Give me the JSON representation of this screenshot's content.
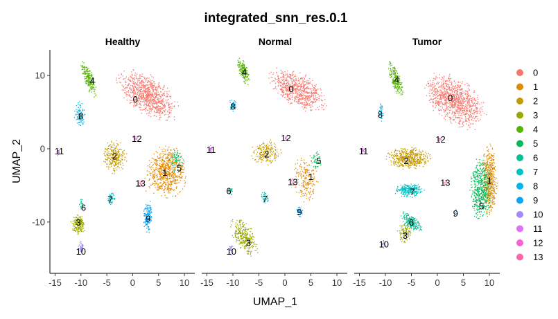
{
  "chart_data": {
    "type": "scatter",
    "title": "integrated_snn_res.0.1",
    "xlabel": "UMAP_1",
    "ylabel": "UMAP_2",
    "xlim": [
      -16,
      12
    ],
    "ylim": [
      -17,
      13.5
    ],
    "xticks": [
      -15,
      -10,
      -5,
      0,
      5,
      10
    ],
    "yticks": [
      -10,
      0,
      10
    ],
    "legend_title": "",
    "legend_position": "right",
    "grid": false,
    "clusters": [
      "0",
      "1",
      "2",
      "3",
      "4",
      "5",
      "6",
      "7",
      "8",
      "9",
      "10",
      "11",
      "12",
      "13"
    ],
    "colors": [
      "#F8766D",
      "#E38900",
      "#C49A00",
      "#99A800",
      "#53B400",
      "#00BC56",
      "#00C094",
      "#00BFC4",
      "#00B6EB",
      "#06A4FF",
      "#A58AFF",
      "#DF70F8",
      "#FB61D7",
      "#FF66A8"
    ],
    "facets": [
      {
        "name": "Healthy",
        "labels": [
          {
            "cluster": "0",
            "x": 0.5,
            "y": 6.8
          },
          {
            "cluster": "1",
            "x": 6.2,
            "y": -3.2
          },
          {
            "cluster": "2",
            "x": -3.5,
            "y": -1.0
          },
          {
            "cluster": "3",
            "x": -10.5,
            "y": -10.0
          },
          {
            "cluster": "4",
            "x": -7.8,
            "y": 9.3
          },
          {
            "cluster": "5",
            "x": 9.0,
            "y": -2.6
          },
          {
            "cluster": "6",
            "x": -9.5,
            "y": -8.0
          },
          {
            "cluster": "7",
            "x": -4.3,
            "y": -6.9
          },
          {
            "cluster": "8",
            "x": -10.0,
            "y": 4.5
          },
          {
            "cluster": "9",
            "x": 3.0,
            "y": -9.5
          },
          {
            "cluster": "10",
            "x": -10.0,
            "y": -14.0
          },
          {
            "cluster": "11",
            "x": -14.2,
            "y": -0.3
          },
          {
            "cluster": "12",
            "x": 0.8,
            "y": 1.4
          },
          {
            "cluster": "13",
            "x": 1.5,
            "y": -4.7
          }
        ],
        "clusters": [
          {
            "cluster": "0",
            "shape": "ellipse",
            "cx": 3.0,
            "cy": 7.3,
            "rx": 6.0,
            "ry": 2.6,
            "rot": -22,
            "n": 900
          },
          {
            "cluster": "1",
            "shape": "ellipse",
            "cx": 6.6,
            "cy": -3.2,
            "rx": 3.8,
            "ry": 3.4,
            "rot": 0,
            "n": 700
          },
          {
            "cluster": "2",
            "shape": "ellipse",
            "cx": -3.6,
            "cy": -1.1,
            "rx": 2.3,
            "ry": 2.3,
            "rot": 0,
            "n": 260
          },
          {
            "cluster": "3",
            "shape": "ellipse",
            "cx": -10.5,
            "cy": -10.4,
            "rx": 1.4,
            "ry": 1.4,
            "rot": 0,
            "n": 180
          },
          {
            "cluster": "4",
            "shape": "ellipse",
            "cx": -8.5,
            "cy": 9.6,
            "rx": 2.6,
            "ry": 0.9,
            "rot": -62,
            "n": 200
          },
          {
            "cluster": "5",
            "shape": "ellipse",
            "cx": 8.6,
            "cy": -1.6,
            "rx": 1.4,
            "ry": 1.6,
            "rot": 0,
            "n": 60
          },
          {
            "cluster": "6",
            "shape": "ellipse",
            "cx": -9.8,
            "cy": -7.6,
            "rx": 0.5,
            "ry": 0.7,
            "rot": 0,
            "n": 20
          },
          {
            "cluster": "7",
            "shape": "ellipse",
            "cx": -4.2,
            "cy": -6.8,
            "rx": 0.8,
            "ry": 0.8,
            "rot": 0,
            "n": 50
          },
          {
            "cluster": "8",
            "shape": "ellipse",
            "cx": -10.3,
            "cy": 4.7,
            "rx": 1.0,
            "ry": 1.8,
            "rot": 0,
            "n": 100
          },
          {
            "cluster": "9",
            "shape": "ellipse",
            "cx": 3.0,
            "cy": -9.2,
            "rx": 0.9,
            "ry": 2.2,
            "rot": 0,
            "n": 150
          },
          {
            "cluster": "10",
            "shape": "ellipse",
            "cx": -10.0,
            "cy": -13.5,
            "rx": 0.5,
            "ry": 0.9,
            "rot": 0,
            "n": 50
          },
          {
            "cluster": "11",
            "shape": "ellipse",
            "cx": -14.3,
            "cy": -0.4,
            "rx": 0.3,
            "ry": 0.6,
            "rot": 0,
            "n": 20
          },
          {
            "cluster": "12",
            "shape": "ellipse",
            "cx": 0.5,
            "cy": 1.5,
            "rx": 0.4,
            "ry": 0.3,
            "rot": 0,
            "n": 12
          },
          {
            "cluster": "13",
            "shape": "ellipse",
            "cx": 1.5,
            "cy": -4.7,
            "rx": 0.4,
            "ry": 0.5,
            "rot": 0,
            "n": 15
          }
        ]
      },
      {
        "name": "Normal",
        "labels": [
          {
            "cluster": "0",
            "x": 1.2,
            "y": 8.2
          },
          {
            "cluster": "1",
            "x": 5.0,
            "y": -3.8
          },
          {
            "cluster": "2",
            "x": -3.5,
            "y": -0.7
          },
          {
            "cluster": "3",
            "x": -7.0,
            "y": -12.8
          },
          {
            "cluster": "4",
            "x": -7.8,
            "y": 10.5
          },
          {
            "cluster": "5",
            "x": 6.5,
            "y": -1.6
          },
          {
            "cluster": "6",
            "x": -10.8,
            "y": -5.7
          },
          {
            "cluster": "7",
            "x": -3.8,
            "y": -6.8
          },
          {
            "cluster": "8",
            "x": -10.0,
            "y": 5.8
          },
          {
            "cluster": "9",
            "x": 2.8,
            "y": -8.6
          },
          {
            "cluster": "10",
            "x": -10.3,
            "y": -14.0
          },
          {
            "cluster": "11",
            "x": -14.2,
            "y": -0.1
          },
          {
            "cluster": "12",
            "x": 0.2,
            "y": 1.5
          },
          {
            "cluster": "13",
            "x": 1.5,
            "y": -4.5
          }
        ],
        "clusters": [
          {
            "cluster": "0",
            "shape": "ellipse",
            "cx": 2.5,
            "cy": 8.0,
            "rx": 5.5,
            "ry": 2.3,
            "rot": -20,
            "n": 700
          },
          {
            "cluster": "1",
            "shape": "ellipse",
            "cx": 4.0,
            "cy": -4.0,
            "rx": 2.3,
            "ry": 3.0,
            "rot": 0,
            "n": 200
          },
          {
            "cluster": "2",
            "shape": "ellipse",
            "cx": -3.5,
            "cy": -0.5,
            "rx": 2.8,
            "ry": 1.6,
            "rot": 0,
            "n": 200
          },
          {
            "cluster": "3",
            "shape": "ellipse",
            "cx": -7.8,
            "cy": -12.0,
            "rx": 3.2,
            "ry": 1.6,
            "rot": -42,
            "n": 300
          },
          {
            "cluster": "4",
            "shape": "ellipse",
            "cx": -8.0,
            "cy": 10.6,
            "rx": 1.9,
            "ry": 0.8,
            "rot": -62,
            "n": 160
          },
          {
            "cluster": "5",
            "shape": "ellipse",
            "cx": 6.0,
            "cy": -1.6,
            "rx": 1.0,
            "ry": 1.3,
            "rot": 0,
            "n": 40
          },
          {
            "cluster": "6",
            "shape": "ellipse",
            "cx": -10.5,
            "cy": -5.7,
            "rx": 0.5,
            "ry": 0.6,
            "rot": 0,
            "n": 25
          },
          {
            "cluster": "7",
            "shape": "ellipse",
            "cx": -3.8,
            "cy": -6.6,
            "rx": 0.8,
            "ry": 0.8,
            "rot": 0,
            "n": 40
          },
          {
            "cluster": "8",
            "shape": "ellipse",
            "cx": -10.0,
            "cy": 6.0,
            "rx": 0.7,
            "ry": 0.8,
            "rot": 0,
            "n": 50
          },
          {
            "cluster": "9",
            "shape": "ellipse",
            "cx": 2.8,
            "cy": -8.5,
            "rx": 0.6,
            "ry": 0.8,
            "rot": 0,
            "n": 40
          },
          {
            "cluster": "10",
            "shape": "ellipse",
            "cx": -10.3,
            "cy": -13.8,
            "rx": 0.5,
            "ry": 0.8,
            "rot": 0,
            "n": 30
          },
          {
            "cluster": "11",
            "shape": "ellipse",
            "cx": -14.3,
            "cy": -0.1,
            "rx": 0.3,
            "ry": 0.6,
            "rot": 0,
            "n": 20
          },
          {
            "cluster": "12",
            "shape": "ellipse",
            "cx": 0.2,
            "cy": 1.5,
            "rx": 0.3,
            "ry": 0.3,
            "rot": 0,
            "n": 8
          },
          {
            "cluster": "13",
            "shape": "ellipse",
            "cx": 1.5,
            "cy": -4.5,
            "rx": 0.4,
            "ry": 0.5,
            "rot": 0,
            "n": 10
          }
        ]
      },
      {
        "name": "Tumor",
        "labels": [
          {
            "cluster": "0",
            "x": 2.5,
            "y": 7.0
          },
          {
            "cluster": "1",
            "x": 10.0,
            "y": -4.3
          },
          {
            "cluster": "2",
            "x": -6.0,
            "y": -1.6
          },
          {
            "cluster": "3",
            "x": -6.2,
            "y": -11.8
          },
          {
            "cluster": "4",
            "x": -7.8,
            "y": 9.5
          },
          {
            "cluster": "5",
            "x": 8.5,
            "y": -7.8
          },
          {
            "cluster": "6",
            "x": -5.0,
            "y": -10.0
          },
          {
            "cluster": "7",
            "x": -4.8,
            "y": -5.8
          },
          {
            "cluster": "8",
            "x": -11.0,
            "y": 4.7
          },
          {
            "cluster": "9",
            "x": 3.5,
            "y": -8.8
          },
          {
            "cluster": "10",
            "x": -10.3,
            "y": -13.0
          },
          {
            "cluster": "11",
            "x": -14.2,
            "y": -0.3
          },
          {
            "cluster": "12",
            "x": 0.6,
            "y": 1.3
          },
          {
            "cluster": "13",
            "x": 1.5,
            "y": -4.6
          }
        ],
        "clusters": [
          {
            "cluster": "0",
            "shape": "ellipse",
            "cx": 3.3,
            "cy": 6.5,
            "rx": 6.0,
            "ry": 3.0,
            "rot": -22,
            "n": 1000
          },
          {
            "cluster": "1",
            "shape": "ellipse",
            "cx": 10.0,
            "cy": -4.5,
            "rx": 1.4,
            "ry": 4.8,
            "rot": 0,
            "n": 500
          },
          {
            "cluster": "2",
            "shape": "ellipse",
            "cx": -5.5,
            "cy": -1.3,
            "rx": 4.3,
            "ry": 1.4,
            "rot": 0,
            "n": 500
          },
          {
            "cluster": "3",
            "shape": "ellipse",
            "cx": -6.3,
            "cy": -11.5,
            "rx": 1.3,
            "ry": 1.4,
            "rot": 0,
            "n": 100
          },
          {
            "cluster": "4",
            "shape": "ellipse",
            "cx": -8.0,
            "cy": 9.5,
            "rx": 2.6,
            "ry": 0.9,
            "rot": -65,
            "n": 200
          },
          {
            "cluster": "5",
            "shape": "ellipse",
            "cx": 8.3,
            "cy": -5.5,
            "rx": 2.0,
            "ry": 4.0,
            "rot": 0,
            "n": 500
          },
          {
            "cluster": "6",
            "shape": "ellipse",
            "cx": -5.0,
            "cy": -10.0,
            "rx": 2.2,
            "ry": 1.0,
            "rot": -25,
            "n": 200
          },
          {
            "cluster": "7",
            "shape": "ellipse",
            "cx": -5.5,
            "cy": -5.7,
            "rx": 2.8,
            "ry": 0.9,
            "rot": 0,
            "n": 280
          },
          {
            "cluster": "8",
            "shape": "ellipse",
            "cx": -10.8,
            "cy": 5.0,
            "rx": 0.5,
            "ry": 1.3,
            "rot": 0,
            "n": 40
          },
          {
            "cluster": "9",
            "shape": "ellipse",
            "cx": 3.5,
            "cy": -8.6,
            "rx": 0.4,
            "ry": 0.5,
            "rot": 0,
            "n": 6
          },
          {
            "cluster": "10",
            "shape": "ellipse",
            "cx": -10.3,
            "cy": -13.0,
            "rx": 0.4,
            "ry": 0.5,
            "rot": 0,
            "n": 15
          },
          {
            "cluster": "11",
            "shape": "ellipse",
            "cx": -14.3,
            "cy": -0.3,
            "rx": 0.3,
            "ry": 0.6,
            "rot": 0,
            "n": 20
          },
          {
            "cluster": "12",
            "shape": "ellipse",
            "cx": 0.4,
            "cy": 1.3,
            "rx": 0.3,
            "ry": 0.3,
            "rot": 0,
            "n": 10
          },
          {
            "cluster": "13",
            "shape": "ellipse",
            "cx": 1.5,
            "cy": -4.6,
            "rx": 0.4,
            "ry": 0.5,
            "rot": 0,
            "n": 8
          }
        ]
      }
    ]
  }
}
